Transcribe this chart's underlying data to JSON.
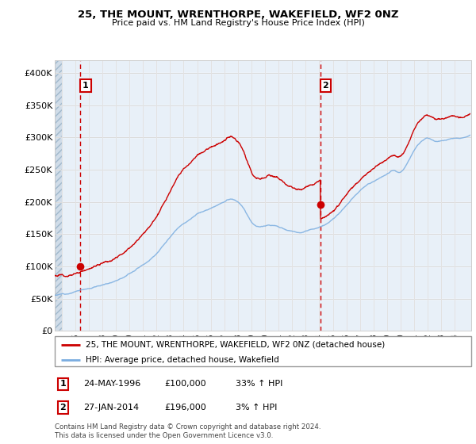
{
  "title1": "25, THE MOUNT, WRENTHORPE, WAKEFIELD, WF2 0NZ",
  "title2": "Price paid vs. HM Land Registry's House Price Index (HPI)",
  "ylim": [
    0,
    420000
  ],
  "yticks": [
    0,
    50000,
    100000,
    150000,
    200000,
    250000,
    300000,
    350000,
    400000
  ],
  "ytick_labels": [
    "£0",
    "£50K",
    "£100K",
    "£150K",
    "£200K",
    "£250K",
    "£300K",
    "£350K",
    "£400K"
  ],
  "sale1_date": 1996.4,
  "sale1_price": 100000,
  "sale2_date": 2014.08,
  "sale2_price": 196000,
  "sale1_label": "1",
  "sale2_label": "2",
  "legend_line1": "25, THE MOUNT, WRENTHORPE, WAKEFIELD, WF2 0NZ (detached house)",
  "legend_line2": "HPI: Average price, detached house, Wakefield",
  "table_row1": [
    "1",
    "24-MAY-1996",
    "£100,000",
    "33% ↑ HPI"
  ],
  "table_row2": [
    "2",
    "27-JAN-2014",
    "£196,000",
    "3% ↑ HPI"
  ],
  "footer": "Contains HM Land Registry data © Crown copyright and database right 2024.\nThis data is licensed under the Open Government Licence v3.0.",
  "line_color_red": "#cc0000",
  "line_color_blue": "#7aade0",
  "grid_color": "#cccccc",
  "bg_color": "#e8f0f8",
  "hatch_bg": "#d0dce8",
  "xmin": 1994.5,
  "xmax": 2025.2,
  "xtick_years": [
    1995,
    1996,
    1997,
    1998,
    1999,
    2000,
    2001,
    2002,
    2003,
    2004,
    2005,
    2006,
    2007,
    2008,
    2009,
    2010,
    2011,
    2012,
    2013,
    2014,
    2015,
    2016,
    2017,
    2018,
    2019,
    2020,
    2021,
    2022,
    2023,
    2024
  ],
  "hpi_years": [
    1994.5,
    1995.0,
    1995.5,
    1996.0,
    1996.5,
    1997.0,
    1997.5,
    1998.0,
    1998.5,
    1999.0,
    1999.5,
    2000.0,
    2000.5,
    2001.0,
    2001.5,
    2002.0,
    2002.5,
    2003.0,
    2003.5,
    2004.0,
    2004.5,
    2005.0,
    2005.5,
    2006.0,
    2006.5,
    2007.0,
    2007.5,
    2008.0,
    2008.5,
    2009.0,
    2009.5,
    2010.0,
    2010.5,
    2011.0,
    2011.5,
    2012.0,
    2012.5,
    2013.0,
    2013.5,
    2014.0,
    2014.5,
    2015.0,
    2015.5,
    2016.0,
    2016.5,
    2017.0,
    2017.5,
    2018.0,
    2018.5,
    2019.0,
    2019.5,
    2020.0,
    2020.5,
    2021.0,
    2021.5,
    2022.0,
    2022.5,
    2023.0,
    2023.5,
    2024.0,
    2024.5,
    2025.0
  ],
  "hpi_vals": [
    55000,
    57000,
    59000,
    62000,
    65000,
    68000,
    71000,
    74000,
    77000,
    82000,
    88000,
    95000,
    102000,
    110000,
    118000,
    128000,
    140000,
    152000,
    163000,
    172000,
    180000,
    187000,
    192000,
    196000,
    202000,
    207000,
    210000,
    205000,
    192000,
    175000,
    167000,
    170000,
    171000,
    168000,
    163000,
    160000,
    158000,
    159000,
    162000,
    166000,
    170000,
    176000,
    185000,
    196000,
    208000,
    218000,
    226000,
    232000,
    238000,
    244000,
    250000,
    248000,
    262000,
    283000,
    295000,
    300000,
    295000,
    295000,
    298000,
    300000,
    302000,
    305000
  ]
}
